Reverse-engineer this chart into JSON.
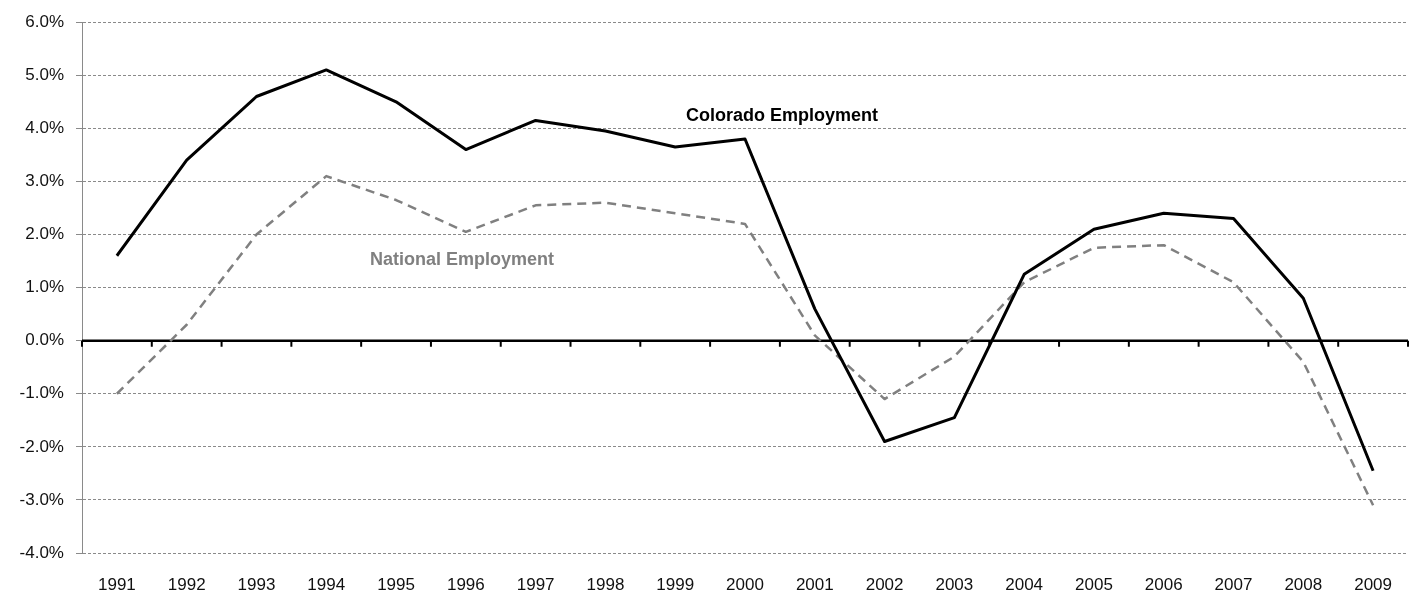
{
  "chart_data": {
    "type": "line",
    "categories": [
      "1991",
      "1992",
      "1993",
      "1994",
      "1995",
      "1996",
      "1997",
      "1998",
      "1999",
      "2000",
      "2001",
      "2002",
      "2003",
      "2004",
      "2005",
      "2006",
      "2007",
      "2008",
      "2009"
    ],
    "series": [
      {
        "name": "Colorado Employment",
        "color": "#000000",
        "line_style": "solid",
        "values": [
          1.6,
          3.4,
          4.6,
          5.1,
          4.5,
          3.6,
          4.15,
          3.95,
          3.65,
          3.8,
          0.6,
          -1.9,
          -1.45,
          1.25,
          2.1,
          2.4,
          2.3,
          0.8,
          -2.45
        ]
      },
      {
        "name": "National Employment",
        "color": "#808080",
        "line_style": "dashed",
        "values": [
          -1.0,
          0.3,
          2.0,
          3.1,
          2.65,
          2.05,
          2.55,
          2.6,
          2.4,
          2.2,
          0.1,
          -1.1,
          -0.3,
          1.1,
          1.75,
          1.8,
          1.1,
          -0.4,
          -3.1
        ]
      }
    ],
    "ylim": [
      -4,
      6
    ],
    "yticks": [
      {
        "value": -4,
        "label": "-4.0%"
      },
      {
        "value": -3,
        "label": "-3.0%"
      },
      {
        "value": -2,
        "label": "-2.0%"
      },
      {
        "value": -1,
        "label": "-1.0%"
      },
      {
        "value": 0,
        "label": "0.0%"
      },
      {
        "value": 1,
        "label": "1.0%"
      },
      {
        "value": 2,
        "label": "2.0%"
      },
      {
        "value": 3,
        "label": "3.0%"
      },
      {
        "value": 4,
        "label": "4.0%"
      },
      {
        "value": 5,
        "label": "5.0%"
      },
      {
        "value": 6,
        "label": "6.0%"
      }
    ],
    "grid": "y",
    "marker": "none"
  }
}
